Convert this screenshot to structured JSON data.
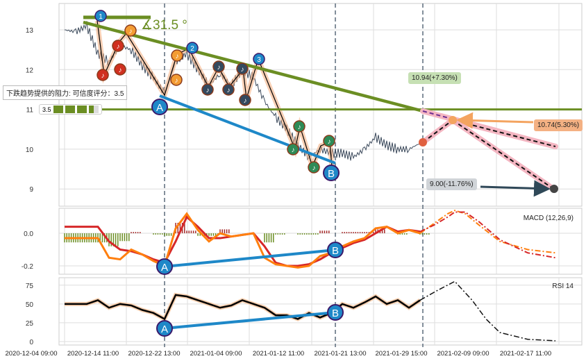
{
  "chart_data": [
    {
      "type": "line",
      "panel": "price",
      "yticks": [
        "13",
        "12",
        "11",
        "10",
        "9"
      ],
      "ylim": [
        8.6,
        13.6
      ],
      "grid": true,
      "x_tick_labels": [
        "2020-12-04 09:00",
        "2020-12-14 11:00",
        "2020-12-22 13:00",
        "2021-01-04 09:00",
        "2021-01-12 11:00",
        "2021-01-21 13:00",
        "2021-01-29 15:00",
        "2021-02-09 09:00",
        "2021-02-17 11:00"
      ],
      "price": [
        13.0,
        12.95,
        13.1,
        12.4,
        12.2,
        12.6,
        12.5,
        12.1,
        11.8,
        11.4,
        12.2,
        12.4,
        12.0,
        11.6,
        11.9,
        11.6,
        12.0,
        11.8,
        11.2,
        10.8,
        10.5,
        10.1,
        9.8,
        10.0,
        9.9,
        9.9,
        9.8,
        10.0,
        10.3,
        10.1,
        10.0,
        10.0,
        10.15
      ],
      "resistance_level": 11.0,
      "angle_label": "∡31.5 °",
      "wave_labels": [
        "1",
        "2",
        "3"
      ],
      "divergence_labels": [
        "A",
        "B"
      ],
      "forecasts": [
        {
          "label": "10.94(+7.30%)",
          "value": 10.94,
          "color": "#c6e0b4"
        },
        {
          "label": "10.74(5.30%)",
          "value": 10.74,
          "color": "#f4b183"
        },
        {
          "label": "9.00(-11.76%)",
          "value": 9.0,
          "color": "#d0d4d8"
        }
      ],
      "annotation": {
        "text": "下跌趋势提供的阻力: 可信度评分：3.5",
        "score": "3.5",
        "score_stars": 3.5,
        "legend_text": "3.5"
      }
    },
    {
      "type": "line",
      "panel": "macd",
      "title": "MACD (12,26,9)",
      "yticks": [
        "0.0",
        "-0.2"
      ],
      "ylim": [
        -0.26,
        0.16
      ],
      "dif": [
        -0.03,
        -0.03,
        -0.03,
        -0.03,
        -0.15,
        -0.16,
        -0.1,
        -0.13,
        -0.17,
        -0.2,
        0.03,
        0.12,
        0.02,
        -0.05,
        0.0,
        -0.02,
        -0.01,
        0.0,
        -0.15,
        -0.19,
        -0.2,
        -0.21,
        -0.2,
        -0.14,
        -0.12,
        -0.08,
        -0.05,
        -0.03,
        0.03,
        0.04,
        0.0,
        0.02,
        0.0
      ],
      "dea": [
        0.04,
        0.04,
        0.04,
        0.04,
        -0.05,
        -0.1,
        -0.11,
        -0.13,
        -0.16,
        -0.18,
        -0.05,
        0.1,
        0.04,
        -0.03,
        -0.03,
        -0.02,
        -0.01,
        0.0,
        -0.08,
        -0.18,
        -0.2,
        -0.2,
        -0.19,
        -0.16,
        -0.12,
        -0.09,
        -0.06,
        -0.04,
        0.0,
        0.04,
        0.01,
        0.02,
        0.01
      ],
      "dif_forecast": [
        0.0,
        0.06,
        0.12,
        0.14,
        0.12,
        0.05,
        -0.05,
        -0.1,
        -0.12
      ],
      "dea_forecast": [
        0.01,
        0.05,
        0.1,
        0.13,
        0.13,
        0.07,
        -0.04,
        -0.12,
        -0.15
      ],
      "colors": {
        "dif": "#ff7f0e",
        "dea": "#d62728",
        "hist_pos": "#a52a2a",
        "hist_neg": "#6b8e23"
      }
    },
    {
      "type": "line",
      "panel": "rsi",
      "title": "RSI 14",
      "yticks": [
        "75",
        "50",
        "25",
        "0"
      ],
      "ylim": [
        -3,
        85
      ],
      "rsi": [
        50,
        50,
        50,
        55,
        45,
        50,
        48,
        42,
        38,
        30,
        62,
        60,
        55,
        50,
        45,
        48,
        55,
        50,
        45,
        35,
        35,
        30,
        38,
        32,
        38,
        50,
        45,
        52,
        60,
        50,
        55,
        45,
        55
      ],
      "rsi_forecast": [
        55,
        68,
        80,
        55,
        30,
        12,
        3,
        1
      ]
    }
  ]
}
